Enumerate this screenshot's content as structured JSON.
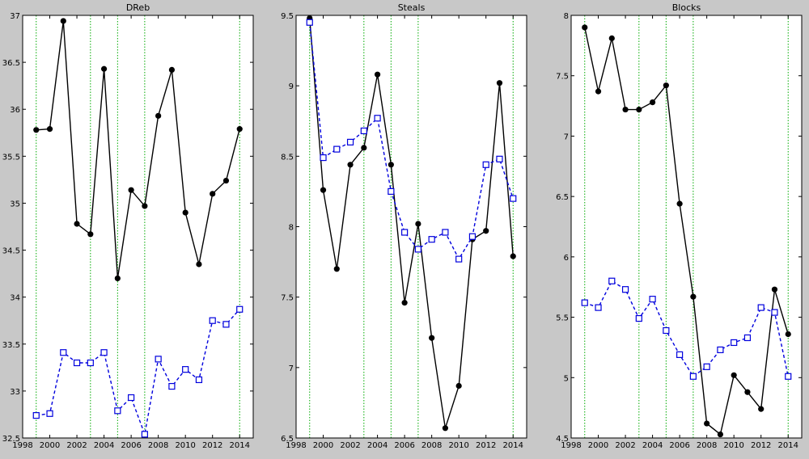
{
  "figure": {
    "background": "#c8c8c8",
    "axes_background": "#ffffff"
  },
  "chart_data": [
    {
      "type": "line",
      "title": "DReb",
      "xlabel": "",
      "ylabel": "",
      "xlim": [
        1998,
        2015
      ],
      "ylim": [
        32.5,
        37
      ],
      "xticks": [
        1998,
        2000,
        2002,
        2004,
        2006,
        2008,
        2010,
        2012,
        2014
      ],
      "yticks": [
        32.5,
        33,
        33.5,
        34,
        34.5,
        35,
        35.5,
        36,
        36.5,
        37
      ],
      "vlines": [
        1999,
        2003,
        2005,
        2007,
        2014
      ],
      "vline_color": "#00aa00",
      "x": [
        1999,
        2000,
        2001,
        2002,
        2003,
        2004,
        2005,
        2006,
        2007,
        2008,
        2009,
        2010,
        2011,
        2012,
        2013,
        2014
      ],
      "series": [
        {
          "style": "solid-dot",
          "color": "#000000",
          "values": [
            35.78,
            35.79,
            36.94,
            34.78,
            34.67,
            36.43,
            34.2,
            35.14,
            34.97,
            35.93,
            36.42,
            34.9,
            34.35,
            35.1,
            35.24,
            35.79
          ]
        },
        {
          "style": "dashed-square",
          "color": "#0000dd",
          "values": [
            32.74,
            32.76,
            33.41,
            33.3,
            33.3,
            33.41,
            32.79,
            32.93,
            32.54,
            33.34,
            33.05,
            33.23,
            33.12,
            33.75,
            33.71,
            33.87
          ]
        }
      ]
    },
    {
      "type": "line",
      "title": "Steals",
      "xlabel": "",
      "ylabel": "",
      "xlim": [
        1998,
        2015
      ],
      "ylim": [
        6.5,
        9.5
      ],
      "xticks": [
        1998,
        2000,
        2002,
        2004,
        2006,
        2008,
        2010,
        2012,
        2014
      ],
      "yticks": [
        6.5,
        7,
        7.5,
        8,
        8.5,
        9,
        9.5
      ],
      "vlines": [
        1999,
        2003,
        2005,
        2007,
        2014
      ],
      "vline_color": "#00aa00",
      "x": [
        1999,
        2000,
        2001,
        2002,
        2003,
        2004,
        2005,
        2006,
        2007,
        2008,
        2009,
        2010,
        2011,
        2012,
        2013,
        2014
      ],
      "series": [
        {
          "style": "solid-dot",
          "color": "#000000",
          "values": [
            9.48,
            8.26,
            7.7,
            8.44,
            8.56,
            9.08,
            8.44,
            7.46,
            8.02,
            7.21,
            6.57,
            6.87,
            7.91,
            7.97,
            9.02,
            7.79
          ]
        },
        {
          "style": "dashed-square",
          "color": "#0000dd",
          "values": [
            9.45,
            8.49,
            8.55,
            8.6,
            8.68,
            8.77,
            8.25,
            7.96,
            7.84,
            7.91,
            7.96,
            7.77,
            7.93,
            8.44,
            8.48,
            8.2
          ]
        }
      ]
    },
    {
      "type": "line",
      "title": "Blocks",
      "xlabel": "",
      "ylabel": "",
      "xlim": [
        1998,
        2015
      ],
      "ylim": [
        4.5,
        8
      ],
      "xticks": [
        1998,
        2000,
        2002,
        2004,
        2006,
        2008,
        2010,
        2012,
        2014
      ],
      "yticks": [
        4.5,
        5,
        5.5,
        6,
        6.5,
        7,
        7.5,
        8
      ],
      "vlines": [
        1999,
        2003,
        2005,
        2007,
        2014
      ],
      "vline_color": "#00aa00",
      "x": [
        1999,
        2000,
        2001,
        2002,
        2003,
        2004,
        2005,
        2006,
        2007,
        2008,
        2009,
        2010,
        2011,
        2012,
        2013,
        2014
      ],
      "series": [
        {
          "style": "solid-dot",
          "color": "#000000",
          "values": [
            7.9,
            7.37,
            7.81,
            7.22,
            7.22,
            7.28,
            7.42,
            6.44,
            5.67,
            4.62,
            4.53,
            5.02,
            4.88,
            4.74,
            5.73,
            5.36
          ]
        },
        {
          "style": "dashed-square",
          "color": "#0000dd",
          "values": [
            5.62,
            5.58,
            5.8,
            5.73,
            5.49,
            5.65,
            5.39,
            5.19,
            5.01,
            5.09,
            5.23,
            5.29,
            5.33,
            5.58,
            5.54,
            5.01
          ]
        }
      ]
    }
  ]
}
